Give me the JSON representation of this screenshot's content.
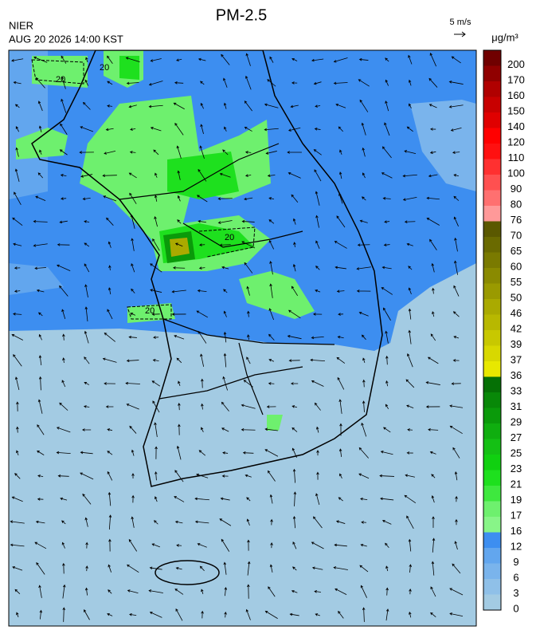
{
  "header": {
    "title": "PM-2.5",
    "agency": "NIER",
    "timestamp": "AUG 20 2026 14:00 KST",
    "wind_scale": "5 m/s"
  },
  "colorbar": {
    "unit": "μg/m³",
    "levels": [
      0,
      3,
      6,
      9,
      12,
      16,
      17,
      19,
      21,
      23,
      25,
      27,
      29,
      31,
      33,
      36,
      37,
      39,
      42,
      46,
      50,
      55,
      60,
      65,
      70,
      76,
      80,
      90,
      100,
      110,
      120,
      140,
      150,
      160,
      170,
      200
    ],
    "colors": [
      "#a3cbe3",
      "#8fc0e8",
      "#7ab4ec",
      "#62a6ee",
      "#3d8ef0",
      "#88f588",
      "#6ef06e",
      "#3ee83e",
      "#1ee01e",
      "#10d010",
      "#14c014",
      "#0fae0f",
      "#0a9a0a",
      "#088808",
      "#057005",
      "#e8e800",
      "#d8d800",
      "#c8c800",
      "#b8b800",
      "#aaaa00",
      "#9a9a00",
      "#8a8a00",
      "#7a7a00",
      "#6a6a00",
      "#5a5800",
      "#ff9999",
      "#ff7070",
      "#ff5050",
      "#ff3030",
      "#ff1010",
      "#ff0000",
      "#e00000",
      "#c80000",
      "#b00000",
      "#900000",
      "#700000"
    ]
  },
  "map": {
    "contour_labels": [
      "20",
      "20",
      "20",
      "20"
    ]
  }
}
